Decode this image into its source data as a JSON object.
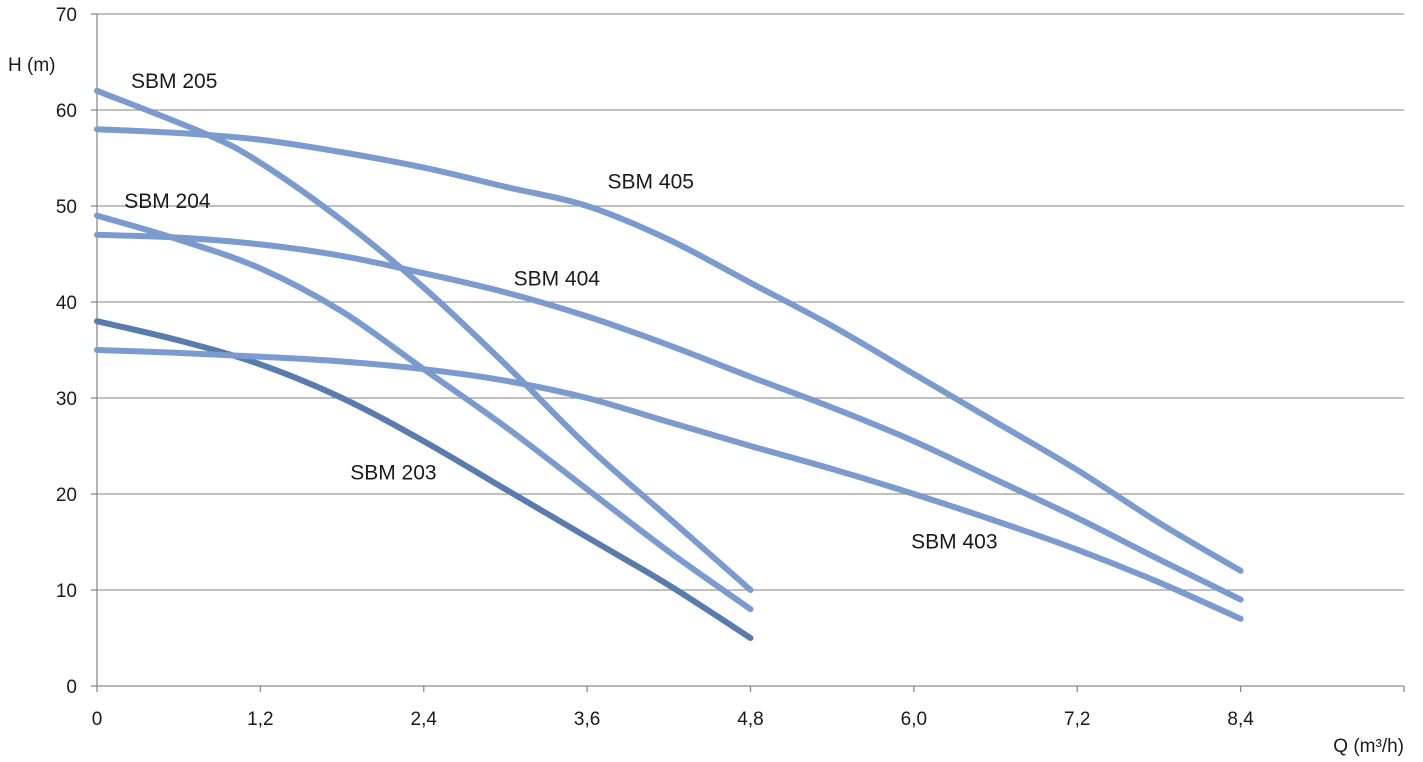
{
  "chart_data": {
    "type": "line",
    "title": "",
    "xlabel": "Q (m³/h)",
    "ylabel": "H (m)",
    "xlim": [
      0,
      9.6
    ],
    "ylim": [
      0,
      70
    ],
    "x_ticks": [
      "0",
      "1,2",
      "2,4",
      "3,6",
      "4,8",
      "6,0",
      "7,2",
      "8,4"
    ],
    "x_tick_values": [
      0,
      1.2,
      2.4,
      3.6,
      4.8,
      6.0,
      7.2,
      8.4
    ],
    "y_ticks": [
      "0",
      "10",
      "20",
      "30",
      "40",
      "50",
      "60",
      "70"
    ],
    "y_tick_values": [
      0,
      10,
      20,
      30,
      40,
      50,
      60,
      70
    ],
    "grid": true,
    "legend": "none",
    "series": [
      {
        "name": "SBM 205",
        "color": "#7B9BCF",
        "points": [
          [
            0,
            62
          ],
          [
            0.8,
            57.5
          ],
          [
            1.2,
            54.5
          ],
          [
            1.8,
            48.5
          ],
          [
            2.4,
            41.5
          ],
          [
            3.0,
            33.5
          ],
          [
            3.6,
            25
          ],
          [
            4.2,
            17.5
          ],
          [
            4.8,
            10
          ]
        ]
      },
      {
        "name": "SBM 405",
        "color": "#7B9BCF",
        "points": [
          [
            0,
            58
          ],
          [
            0.6,
            57.6
          ],
          [
            1.2,
            56.9
          ],
          [
            1.8,
            55.6
          ],
          [
            2.4,
            54
          ],
          [
            3.0,
            52
          ],
          [
            3.6,
            50
          ],
          [
            4.2,
            46.5
          ],
          [
            4.8,
            42
          ],
          [
            5.4,
            37.5
          ],
          [
            6.0,
            32.5
          ],
          [
            6.6,
            27.5
          ],
          [
            7.2,
            22.5
          ],
          [
            7.8,
            17
          ],
          [
            8.4,
            12
          ]
        ]
      },
      {
        "name": "SBM 204",
        "color": "#7B9BCF",
        "points": [
          [
            0,
            49
          ],
          [
            0.6,
            46.5
          ],
          [
            1.2,
            43.5
          ],
          [
            1.8,
            39
          ],
          [
            2.4,
            33
          ],
          [
            3.0,
            27
          ],
          [
            3.6,
            20.5
          ],
          [
            4.2,
            14
          ],
          [
            4.8,
            8
          ]
        ]
      },
      {
        "name": "SBM 404",
        "color": "#7B9BCF",
        "points": [
          [
            0,
            47
          ],
          [
            0.6,
            46.7
          ],
          [
            1.2,
            46
          ],
          [
            1.8,
            44.8
          ],
          [
            2.4,
            43
          ],
          [
            3.0,
            41
          ],
          [
            3.6,
            38.5
          ],
          [
            4.2,
            35.5
          ],
          [
            4.8,
            32.2
          ],
          [
            5.4,
            29
          ],
          [
            6.0,
            25.5
          ],
          [
            6.6,
            21.5
          ],
          [
            7.2,
            17.5
          ],
          [
            7.8,
            13.2
          ],
          [
            8.4,
            9
          ]
        ]
      },
      {
        "name": "SBM 203",
        "color": "#5A7BAE",
        "points": [
          [
            0,
            38
          ],
          [
            0.6,
            36
          ],
          [
            1.2,
            33.5
          ],
          [
            1.8,
            30
          ],
          [
            2.4,
            25.5
          ],
          [
            3.0,
            20.5
          ],
          [
            3.6,
            15.5
          ],
          [
            4.2,
            10.5
          ],
          [
            4.8,
            5
          ]
        ]
      },
      {
        "name": "SBM 403",
        "color": "#7B9BCF",
        "points": [
          [
            0,
            35
          ],
          [
            0.6,
            34.7
          ],
          [
            1.2,
            34.3
          ],
          [
            1.8,
            33.8
          ],
          [
            2.4,
            33
          ],
          [
            3.0,
            31.8
          ],
          [
            3.6,
            30
          ],
          [
            4.2,
            27.5
          ],
          [
            4.8,
            25
          ],
          [
            5.4,
            22.6
          ],
          [
            6.0,
            20
          ],
          [
            6.6,
            17.2
          ],
          [
            7.2,
            14.2
          ],
          [
            7.8,
            10.8
          ],
          [
            8.4,
            7
          ]
        ]
      }
    ],
    "annotations": [
      {
        "series": "SBM 205",
        "text": "SBM 205",
        "x": 0.25,
        "y": 62.3
      },
      {
        "series": "SBM 405",
        "text": "SBM 405",
        "x": 3.75,
        "y": 51.8
      },
      {
        "series": "SBM 204",
        "text": "SBM 204",
        "x": 0.2,
        "y": 49.8
      },
      {
        "series": "SBM 404",
        "text": "SBM 404",
        "x": 3.06,
        "y": 41.7
      },
      {
        "series": "SBM 203",
        "text": "SBM 203",
        "x": 1.86,
        "y": 21.5
      },
      {
        "series": "SBM 403",
        "text": "SBM 403",
        "x": 5.98,
        "y": 14.3
      }
    ]
  }
}
